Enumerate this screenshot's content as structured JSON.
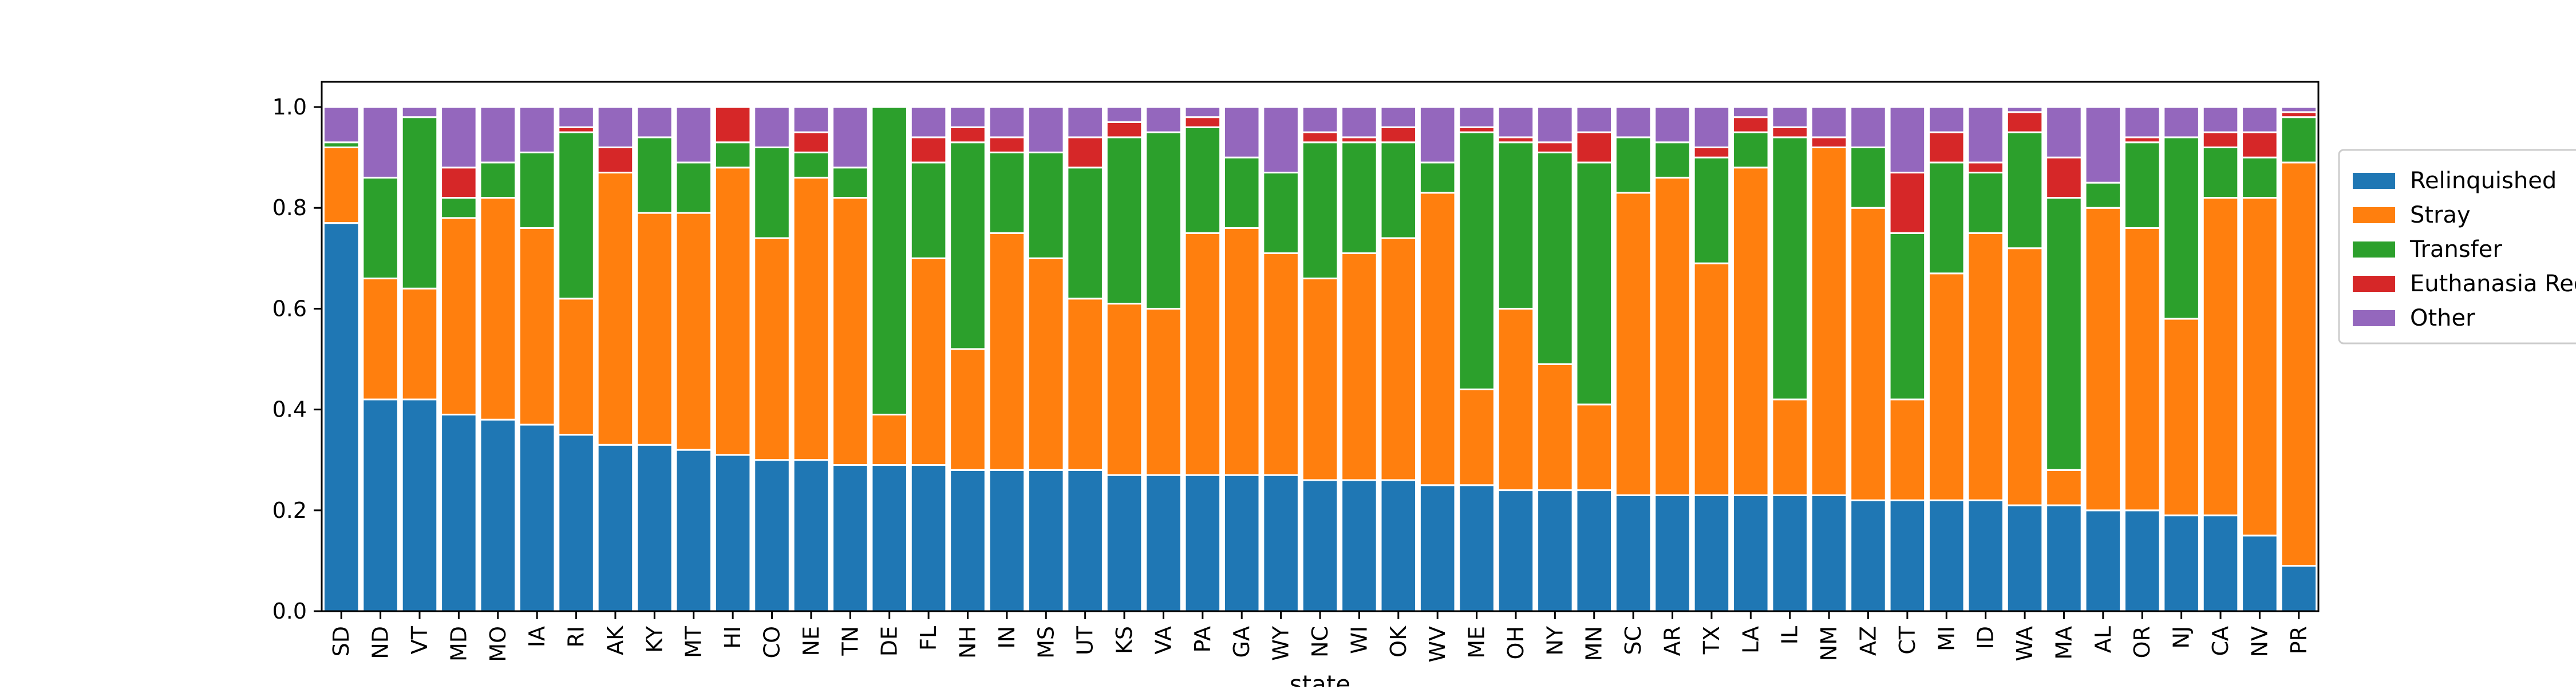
{
  "chart_data": {
    "type": "bar",
    "stacked": true,
    "title": "",
    "xlabel": "state",
    "ylabel": "",
    "ylim": [
      0,
      1.05
    ],
    "yticks": [
      "0.0",
      "0.2",
      "0.4",
      "0.6",
      "0.8",
      "1.0"
    ],
    "grid": false,
    "legend_position": "right, outside plot",
    "categories": [
      "SD",
      "ND",
      "VT",
      "MD",
      "MO",
      "IA",
      "RI",
      "AK",
      "KY",
      "MT",
      "HI",
      "CO",
      "NE",
      "TN",
      "DE",
      "FL",
      "NH",
      "IN",
      "MS",
      "UT",
      "KS",
      "VA",
      "PA",
      "GA",
      "WY",
      "NC",
      "WI",
      "OK",
      "WV",
      "ME",
      "OH",
      "NY",
      "MN",
      "SC",
      "AR",
      "TX",
      "LA",
      "IL",
      "NM",
      "AZ",
      "CT",
      "MI",
      "ID",
      "WA",
      "MA",
      "AL",
      "OR",
      "NJ",
      "CA",
      "NV",
      "PR"
    ],
    "series": [
      {
        "name": "Relinquished",
        "color": "#1f77b4",
        "values": [
          0.77,
          0.42,
          0.42,
          0.39,
          0.38,
          0.37,
          0.35,
          0.33,
          0.33,
          0.32,
          0.31,
          0.3,
          0.3,
          0.29,
          0.29,
          0.29,
          0.28,
          0.28,
          0.28,
          0.28,
          0.27,
          0.27,
          0.27,
          0.27,
          0.27,
          0.26,
          0.26,
          0.26,
          0.25,
          0.25,
          0.24,
          0.24,
          0.24,
          0.23,
          0.23,
          0.23,
          0.23,
          0.23,
          0.23,
          0.22,
          0.22,
          0.22,
          0.22,
          0.21,
          0.21,
          0.2,
          0.2,
          0.19,
          0.19,
          0.15,
          0.09
        ]
      },
      {
        "name": "Stray",
        "color": "#ff7f0e",
        "values": [
          0.15,
          0.24,
          0.22,
          0.39,
          0.44,
          0.39,
          0.27,
          0.54,
          0.46,
          0.47,
          0.57,
          0.44,
          0.56,
          0.53,
          0.1,
          0.41,
          0.24,
          0.47,
          0.42,
          0.34,
          0.34,
          0.33,
          0.48,
          0.49,
          0.44,
          0.4,
          0.45,
          0.48,
          0.58,
          0.19,
          0.36,
          0.25,
          0.17,
          0.6,
          0.63,
          0.46,
          0.65,
          0.19,
          0.69,
          0.58,
          0.2,
          0.45,
          0.53,
          0.51,
          0.07,
          0.6,
          0.56,
          0.39,
          0.63,
          0.67,
          0.8
        ]
      },
      {
        "name": "Transfer",
        "color": "#2ca02c",
        "values": [
          0.01,
          0.2,
          0.34,
          0.04,
          0.07,
          0.15,
          0.33,
          0.0,
          0.15,
          0.1,
          0.05,
          0.18,
          0.05,
          0.06,
          0.61,
          0.19,
          0.41,
          0.16,
          0.21,
          0.26,
          0.33,
          0.35,
          0.21,
          0.14,
          0.16,
          0.27,
          0.22,
          0.19,
          0.06,
          0.51,
          0.33,
          0.42,
          0.48,
          0.11,
          0.07,
          0.21,
          0.07,
          0.52,
          0.0,
          0.12,
          0.33,
          0.22,
          0.12,
          0.23,
          0.54,
          0.05,
          0.17,
          0.36,
          0.1,
          0.08,
          0.09
        ]
      },
      {
        "name": "Euthanasia Requested",
        "color": "#d62728",
        "values": [
          0.0,
          0.0,
          0.0,
          0.06,
          0.0,
          0.0,
          0.01,
          0.05,
          0.0,
          0.0,
          0.07,
          0.0,
          0.04,
          0.0,
          0.0,
          0.05,
          0.03,
          0.03,
          0.0,
          0.06,
          0.03,
          0.0,
          0.02,
          0.0,
          0.0,
          0.02,
          0.01,
          0.03,
          0.0,
          0.01,
          0.01,
          0.02,
          0.06,
          0.0,
          0.0,
          0.02,
          0.03,
          0.02,
          0.02,
          0.0,
          0.12,
          0.06,
          0.02,
          0.04,
          0.08,
          0.0,
          0.01,
          0.0,
          0.03,
          0.05,
          0.01
        ]
      },
      {
        "name": "Other",
        "color": "#9467bd",
        "values": [
          0.07,
          0.14,
          0.02,
          0.12,
          0.11,
          0.09,
          0.04,
          0.08,
          0.06,
          0.11,
          0.0,
          0.08,
          0.05,
          0.12,
          0.0,
          0.06,
          0.04,
          0.06,
          0.09,
          0.06,
          0.03,
          0.05,
          0.02,
          0.1,
          0.13,
          0.05,
          0.06,
          0.04,
          0.11,
          0.04,
          0.06,
          0.07,
          0.05,
          0.06,
          0.07,
          0.08,
          0.02,
          0.04,
          0.06,
          0.08,
          0.13,
          0.05,
          0.11,
          0.01,
          0.1,
          0.15,
          0.06,
          0.06,
          0.05,
          0.05,
          0.01
        ]
      }
    ]
  }
}
